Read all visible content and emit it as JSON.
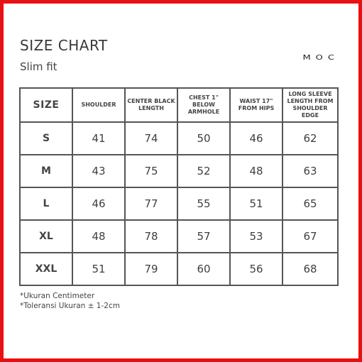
{
  "header": {
    "title": "SIZE CHART",
    "subtitle": "Slim fit",
    "brand": "MOC"
  },
  "table": {
    "columns": [
      "SIZE",
      "SHOULDER",
      "CENTER BLACK LENGTH",
      "CHEST 1\" BELOW ARMHOLE",
      "WAIST 17\" FROM HIPS",
      "LONG SLEEVE LENGTH FROM SHOULDER EDGE"
    ],
    "rows": [
      [
        "S",
        "41",
        "74",
        "50",
        "46",
        "62"
      ],
      [
        "M",
        "43",
        "75",
        "52",
        "48",
        "63"
      ],
      [
        "L",
        "46",
        "77",
        "55",
        "51",
        "65"
      ],
      [
        "XL",
        "48",
        "78",
        "57",
        "53",
        "67"
      ],
      [
        "XXL",
        "51",
        "79",
        "60",
        "56",
        "68"
      ]
    ]
  },
  "notes": [
    "*Ukuran Centimeter",
    "*Toleransi Ukuran ± 1-2cm"
  ],
  "colors": {
    "frame": "#e81010",
    "border": "#555555",
    "text": "#3f3f3f"
  }
}
